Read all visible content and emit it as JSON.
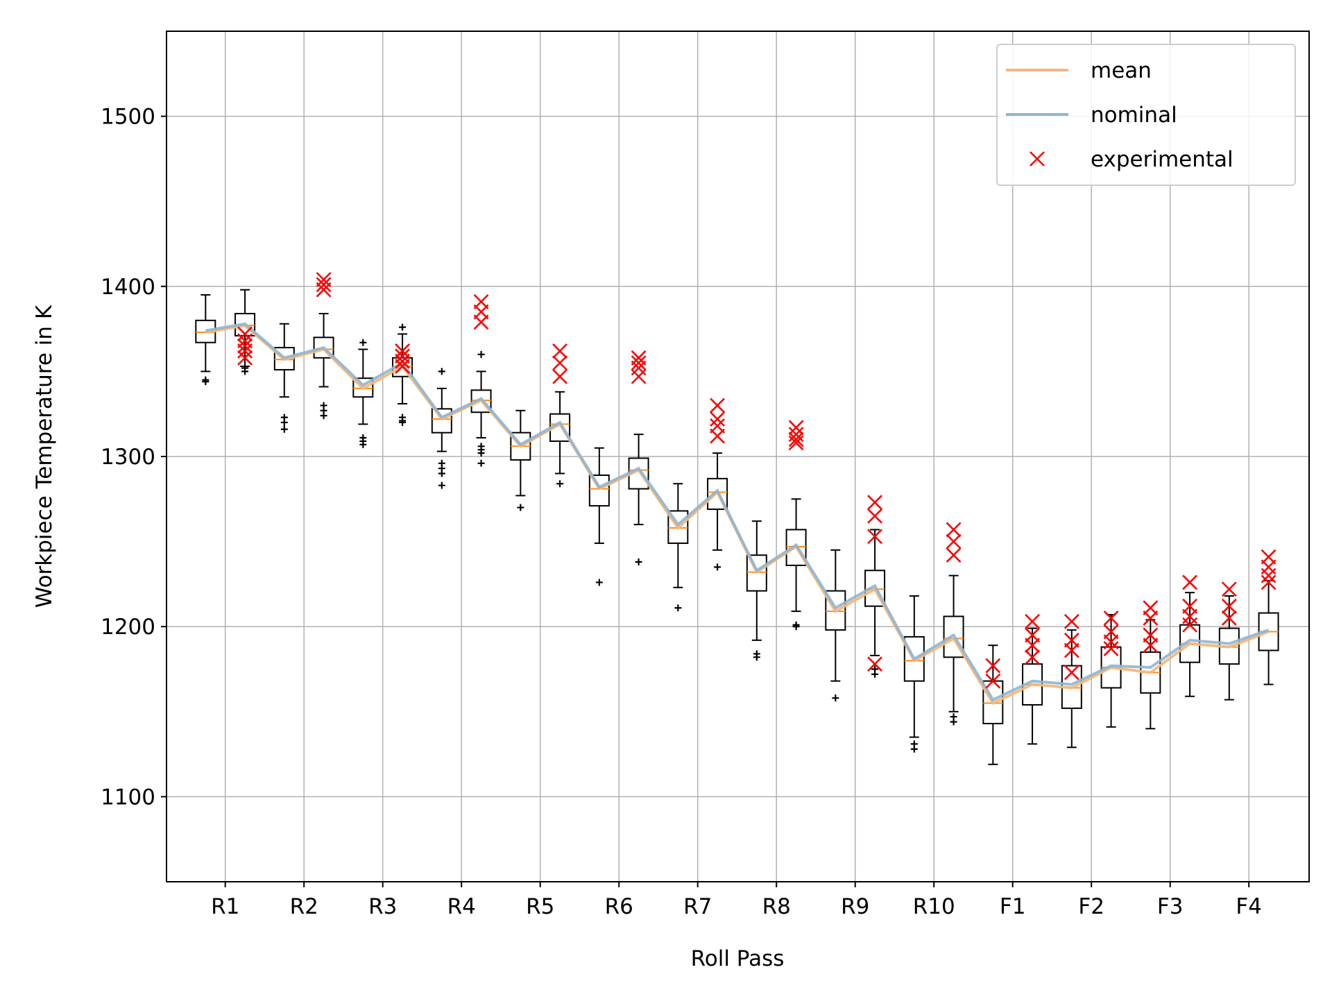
{
  "chart_data": {
    "type": "box",
    "title": "",
    "xlabel": "Roll Pass",
    "ylabel": "Workpiece Temperature in K",
    "categories": [
      "R1",
      "R2",
      "R3",
      "R4",
      "R5",
      "R6",
      "R7",
      "R8",
      "R9",
      "R10",
      "F1",
      "F2",
      "F3",
      "F4"
    ],
    "ylim": [
      1050,
      1550
    ],
    "yticks": [
      1100,
      1200,
      1300,
      1400,
      1500
    ],
    "grid": true,
    "legend_position": "top-right",
    "colors": {
      "mean": "#f5b77a",
      "nominal": "#8fb5d3",
      "experimental": "#ff0000",
      "box": "#000000",
      "median": "#ff8c1a",
      "grid": "#b0b0b0"
    },
    "legend": [
      {
        "key": "mean",
        "label": "mean"
      },
      {
        "key": "nominal",
        "label": "nominal"
      },
      {
        "key": "experimental",
        "label": "experimental"
      }
    ],
    "boxes": [
      {
        "x": 0.75,
        "q1": 1367,
        "med": 1373,
        "q3": 1380,
        "wlo": 1350,
        "whi": 1395,
        "out": [
          1345,
          1344
        ]
      },
      {
        "x": 1.25,
        "q1": 1371,
        "med": 1377,
        "q3": 1384,
        "wlo": 1353,
        "whi": 1398,
        "out": [
          1350,
          1352
        ]
      },
      {
        "x": 1.75,
        "q1": 1351,
        "med": 1357,
        "q3": 1364,
        "wlo": 1335,
        "whi": 1378,
        "out": [
          1323,
          1320,
          1316
        ]
      },
      {
        "x": 2.25,
        "q1": 1358,
        "med": 1363,
        "q3": 1370,
        "wlo": 1341,
        "whi": 1384,
        "out": [
          1330,
          1327,
          1324
        ]
      },
      {
        "x": 2.75,
        "q1": 1335,
        "med": 1340,
        "q3": 1346,
        "wlo": 1319,
        "whi": 1363,
        "out": [
          1311,
          1309,
          1307,
          1367
        ]
      },
      {
        "x": 3.25,
        "q1": 1347,
        "med": 1353,
        "q3": 1358,
        "wlo": 1331,
        "whi": 1372,
        "out": [
          1323,
          1321,
          1320,
          1376
        ]
      },
      {
        "x": 3.75,
        "q1": 1314,
        "med": 1322,
        "q3": 1328,
        "wlo": 1303,
        "whi": 1340,
        "out": [
          1350,
          1296,
          1293,
          1290,
          1283
        ]
      },
      {
        "x": 4.25,
        "q1": 1326,
        "med": 1333,
        "q3": 1339,
        "wlo": 1311,
        "whi": 1350,
        "out": [
          1360,
          1306,
          1304,
          1302,
          1296
        ]
      },
      {
        "x": 4.75,
        "q1": 1298,
        "med": 1306,
        "q3": 1314,
        "wlo": 1277,
        "whi": 1327,
        "out": [
          1270
        ]
      },
      {
        "x": 5.25,
        "q1": 1309,
        "med": 1319,
        "q3": 1325,
        "wlo": 1290,
        "whi": 1338,
        "out": [
          1284
        ]
      },
      {
        "x": 5.75,
        "q1": 1271,
        "med": 1281,
        "q3": 1289,
        "wlo": 1249,
        "whi": 1305,
        "out": [
          1226
        ]
      },
      {
        "x": 6.25,
        "q1": 1281,
        "med": 1292,
        "q3": 1299,
        "wlo": 1260,
        "whi": 1313,
        "out": [
          1238
        ]
      },
      {
        "x": 6.75,
        "q1": 1249,
        "med": 1258,
        "q3": 1268,
        "wlo": 1223,
        "whi": 1284,
        "out": [
          1211
        ]
      },
      {
        "x": 7.25,
        "q1": 1269,
        "med": 1279,
        "q3": 1287,
        "wlo": 1245,
        "whi": 1302,
        "out": [
          1235
        ]
      },
      {
        "x": 7.75,
        "q1": 1221,
        "med": 1232,
        "q3": 1242,
        "wlo": 1192,
        "whi": 1262,
        "out": [
          1184,
          1182
        ]
      },
      {
        "x": 8.25,
        "q1": 1236,
        "med": 1247,
        "q3": 1257,
        "wlo": 1209,
        "whi": 1275,
        "out": [
          1201,
          1200
        ]
      },
      {
        "x": 8.75,
        "q1": 1198,
        "med": 1209,
        "q3": 1221,
        "wlo": 1168,
        "whi": 1245,
        "out": [
          1158
        ]
      },
      {
        "x": 9.25,
        "q1": 1212,
        "med": 1222,
        "q3": 1233,
        "wlo": 1183,
        "whi": 1257,
        "out": [
          1175,
          1172
        ]
      },
      {
        "x": 9.75,
        "q1": 1168,
        "med": 1180,
        "q3": 1194,
        "wlo": 1135,
        "whi": 1218,
        "out": [
          1131,
          1128
        ]
      },
      {
        "x": 10.25,
        "q1": 1182,
        "med": 1193,
        "q3": 1206,
        "wlo": 1150,
        "whi": 1230,
        "out": [
          1147,
          1144
        ]
      },
      {
        "x": 10.75,
        "q1": 1143,
        "med": 1155,
        "q3": 1168,
        "wlo": 1119,
        "whi": 1189,
        "out": []
      },
      {
        "x": 11.25,
        "q1": 1154,
        "med": 1166,
        "q3": 1178,
        "wlo": 1131,
        "whi": 1199,
        "out": []
      },
      {
        "x": 11.75,
        "q1": 1152,
        "med": 1164,
        "q3": 1177,
        "wlo": 1129,
        "whi": 1198,
        "out": []
      },
      {
        "x": 12.25,
        "q1": 1164,
        "med": 1176,
        "q3": 1188,
        "wlo": 1141,
        "whi": 1207,
        "out": []
      },
      {
        "x": 12.75,
        "q1": 1161,
        "med": 1173,
        "q3": 1185,
        "wlo": 1140,
        "whi": 1204,
        "out": []
      },
      {
        "x": 13.25,
        "q1": 1179,
        "med": 1190,
        "q3": 1201,
        "wlo": 1159,
        "whi": 1220,
        "out": []
      },
      {
        "x": 13.75,
        "q1": 1178,
        "med": 1188,
        "q3": 1199,
        "wlo": 1157,
        "whi": 1218,
        "out": []
      },
      {
        "x": 14.25,
        "q1": 1186,
        "med": 1197,
        "q3": 1208,
        "wlo": 1166,
        "whi": 1227,
        "out": []
      }
    ],
    "mean": [
      1373,
      1377,
      1357,
      1363,
      1340,
      1353,
      1322,
      1333,
      1306,
      1319,
      1281,
      1292,
      1258,
      1279,
      1232,
      1247,
      1209,
      1222,
      1180,
      1193,
      1155,
      1166,
      1164,
      1176,
      1173,
      1190,
      1188,
      1197
    ],
    "nominal": [
      1374,
      1378,
      1358,
      1364,
      1342,
      1355,
      1323,
      1334,
      1307,
      1320,
      1282,
      1293,
      1260,
      1280,
      1233,
      1248,
      1211,
      1224,
      1181,
      1195,
      1157,
      1168,
      1166,
      1177,
      1176,
      1192,
      1190,
      1198
    ],
    "experimental": [
      {
        "x": 1.25,
        "y": [
          1372,
          1368,
          1365,
          1362,
          1358
        ]
      },
      {
        "x": 2.25,
        "y": [
          1404,
          1401,
          1398
        ]
      },
      {
        "x": 3.25,
        "y": [
          1362,
          1359,
          1356,
          1353
        ]
      },
      {
        "x": 4.25,
        "y": [
          1391,
          1385,
          1379
        ]
      },
      {
        "x": 5.25,
        "y": [
          1362,
          1355,
          1347
        ]
      },
      {
        "x": 6.25,
        "y": [
          1358,
          1355,
          1352,
          1347
        ]
      },
      {
        "x": 7.25,
        "y": [
          1330,
          1322,
          1318,
          1312
        ]
      },
      {
        "x": 8.25,
        "y": [
          1317,
          1313,
          1310,
          1308
        ]
      },
      {
        "x": 9.25,
        "y": [
          1273,
          1265,
          1253,
          1178
        ]
      },
      {
        "x": 10.25,
        "y": [
          1257,
          1250,
          1242
        ]
      },
      {
        "x": 10.75,
        "y": [
          1177,
          1168
        ]
      },
      {
        "x": 11.25,
        "y": [
          1203,
          1195,
          1189,
          1182
        ]
      },
      {
        "x": 11.75,
        "y": [
          1203,
          1192,
          1186,
          1173
        ]
      },
      {
        "x": 12.25,
        "y": [
          1205,
          1197,
          1191,
          1187
        ]
      },
      {
        "x": 12.75,
        "y": [
          1211,
          1205,
          1195,
          1189
        ]
      },
      {
        "x": 13.25,
        "y": [
          1226,
          1212,
          1206,
          1201
        ]
      },
      {
        "x": 13.75,
        "y": [
          1222,
          1212,
          1205
        ]
      },
      {
        "x": 14.25,
        "y": [
          1241,
          1235,
          1230,
          1226
        ]
      }
    ]
  }
}
